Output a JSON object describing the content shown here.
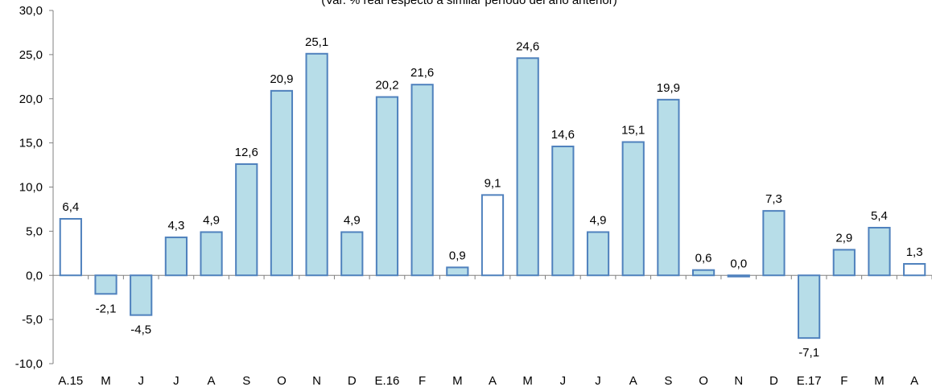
{
  "chart_data": {
    "type": "bar",
    "subtitle": "(Var. % real respecto a similar período del año anterior)",
    "categories": [
      "A.15",
      "M",
      "J",
      "J",
      "A",
      "S",
      "O",
      "N",
      "D",
      "E.16",
      "F",
      "M",
      "A",
      "M",
      "J",
      "J",
      "A",
      "S",
      "O",
      "N",
      "D",
      "E.17",
      "F",
      "M",
      "A"
    ],
    "values": [
      6.4,
      -2.1,
      -4.5,
      4.3,
      4.9,
      12.6,
      20.9,
      25.1,
      4.9,
      20.2,
      21.6,
      0.9,
      9.1,
      24.6,
      14.6,
      4.9,
      15.1,
      19.9,
      0.6,
      0.0,
      7.3,
      -7.1,
      2.9,
      5.4,
      1.3
    ],
    "value_labels": [
      "6,4",
      "-2,1",
      "-4,5",
      "4,3",
      "4,9",
      "12,6",
      "20,9",
      "25,1",
      "4,9",
      "20,2",
      "21,6",
      "0,9",
      "9,1",
      "24,6",
      "14,6",
      "4,9",
      "15,1",
      "19,9",
      "0,6",
      "0,0",
      "7,3",
      "-7,1",
      "2,9",
      "5,4",
      "1,3"
    ],
    "highlighted": [
      true,
      false,
      false,
      false,
      false,
      false,
      false,
      false,
      false,
      false,
      false,
      false,
      true,
      false,
      false,
      false,
      false,
      false,
      false,
      false,
      false,
      false,
      false,
      false,
      true
    ],
    "ylim": [
      -10,
      30
    ],
    "yticks": [
      -10,
      -5,
      0,
      5,
      10,
      15,
      20,
      25,
      30
    ],
    "ytick_labels": [
      "-10,0",
      "-5,0",
      "0,0",
      "5,0",
      "10,0",
      "15,0",
      "20,0",
      "25,0",
      "30,0"
    ],
    "colors": {
      "bar_fill": "#b7dde8",
      "bar_stroke": "#4f81bd",
      "highlight_fill": "#ffffff",
      "axis": "#808080"
    },
    "grid": false,
    "legend": "none"
  }
}
